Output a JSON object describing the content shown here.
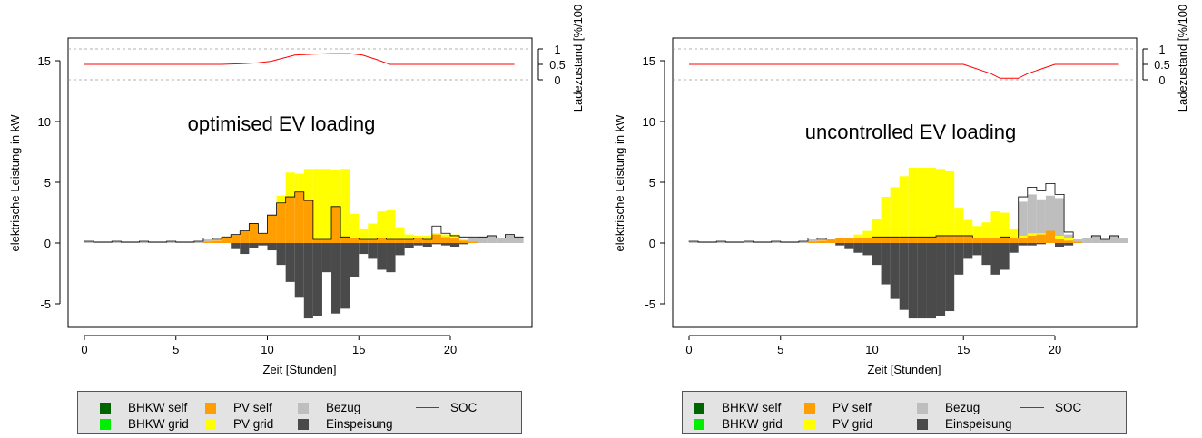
{
  "colors": {
    "bhkw_self": "#006400",
    "bhkw_grid": "#00ee00",
    "pv_self": "#ff9e00",
    "pv_grid": "#ffff00",
    "bezug": "#bebebe",
    "einspeisung": "#4a4a4a",
    "soc": "#ff0000",
    "load": "#000000",
    "legend_bg": "#e3e3e3"
  },
  "legend": {
    "bhkw_self": "BHKW self",
    "bhkw_grid": "BHKW grid",
    "pv_self": "PV self",
    "pv_grid": "PV grid",
    "bezug": "Bezug",
    "einspeisung": "Einspeisung",
    "soc": "SOC"
  },
  "chart_data": [
    {
      "type": "bar",
      "title": "",
      "annotation": "optimised EV loading",
      "xlabel": "Zeit [Stunden]",
      "ylabel": "elektrische Leistung in kW",
      "y2label": "Ladezustand [%/100",
      "xlim": [
        0,
        24
      ],
      "ylim": [
        -7,
        17
      ],
      "xticks": [
        "0",
        "5",
        "10",
        "15",
        "20"
      ],
      "yticks": [
        "-5",
        "0",
        "5",
        "10",
        "15"
      ],
      "y2ticks": [
        "0",
        "0.5",
        "1"
      ],
      "x": [
        6.5,
        7,
        7.5,
        8,
        8.5,
        9,
        9.5,
        10,
        10.5,
        11,
        11.5,
        12,
        12.5,
        13,
        13.5,
        14,
        14.5,
        15,
        15.5,
        16,
        16.5,
        17,
        17.5,
        18,
        18.5,
        19,
        19.5,
        20,
        20.5,
        21,
        21.5,
        22,
        22.5,
        23,
        23.5
      ],
      "series": [
        {
          "name": "PV self",
          "values": [
            0.1,
            0.2,
            0.4,
            0.7,
            1.0,
            1.6,
            0.8,
            2.3,
            3.3,
            3.8,
            4.2,
            3.5,
            0.3,
            0.3,
            3.0,
            0.5,
            0.4,
            0.3,
            0.3,
            0.4,
            0.3,
            0.3,
            0.3,
            0.4,
            0.3,
            0.7,
            0.5,
            0.4,
            0.2,
            0.1,
            0,
            0,
            0,
            0,
            0
          ]
        },
        {
          "name": "PV grid",
          "values": [
            0,
            0,
            0,
            0,
            0,
            0,
            0,
            0,
            0.6,
            2.0,
            1.5,
            2.6,
            5.8,
            5.8,
            3.0,
            5.6,
            2.0,
            0.9,
            1.3,
            2.2,
            2.4,
            1.0,
            0.4,
            0.2,
            0.3,
            0.1,
            0.2,
            0.3,
            0.1,
            0,
            0,
            0,
            0,
            0,
            0
          ]
        },
        {
          "name": "Einspeisung",
          "values": [
            0,
            0,
            0,
            -0.5,
            -0.9,
            -0.4,
            -0.2,
            -0.6,
            -1.8,
            -3.2,
            -4.5,
            -6.2,
            -6.0,
            -2.4,
            -5.8,
            -5.4,
            -2.8,
            -0.9,
            -1.3,
            -2.2,
            -2.4,
            -1.0,
            -0.4,
            -0.2,
            -0.3,
            -0.1,
            -0.2,
            -0.3,
            -0.1,
            0,
            0,
            0,
            0,
            0,
            0
          ]
        },
        {
          "name": "Bezug",
          "values": [
            0.3,
            0.1,
            0.1,
            0,
            0,
            0,
            0,
            0,
            0,
            0,
            0,
            0,
            0,
            0,
            0,
            0,
            0,
            0,
            0,
            0,
            0,
            0,
            0,
            0,
            0,
            0.7,
            0.3,
            0.2,
            0.3,
            0.4,
            0.5,
            0.6,
            0.4,
            0.7,
            0.5
          ]
        }
      ],
      "soc": {
        "name": "SOC",
        "x": [
          0,
          7.5,
          8.5,
          9.5,
          10.2,
          11.5,
          12.5,
          13.5,
          14.5,
          15.2,
          16.0,
          16.7,
          23.5
        ],
        "values": [
          0.5,
          0.5,
          0.52,
          0.55,
          0.6,
          0.8,
          0.83,
          0.85,
          0.85,
          0.8,
          0.65,
          0.5,
          0.5
        ]
      }
    },
    {
      "type": "bar",
      "title": "",
      "annotation": "uncontrolled EV loading",
      "xlabel": "Zeit [Stunden]",
      "ylabel": "elektrische Leistung in kW",
      "y2label": "Ladezustand [%/100",
      "xlim": [
        0,
        24
      ],
      "ylim": [
        -7,
        17
      ],
      "xticks": [
        "0",
        "5",
        "10",
        "15",
        "20"
      ],
      "yticks": [
        "-5",
        "0",
        "5",
        "10",
        "15"
      ],
      "y2ticks": [
        "0",
        "0.5",
        "1"
      ],
      "x": [
        6.5,
        7,
        7.5,
        8,
        8.5,
        9,
        9.5,
        10,
        10.5,
        11,
        11.5,
        12,
        12.5,
        13,
        13.5,
        14,
        14.5,
        15,
        15.5,
        16,
        16.5,
        17,
        17.5,
        18,
        18.5,
        19,
        19.5,
        20,
        20.5,
        21,
        21.5,
        22,
        22.5,
        23,
        23.5
      ],
      "series": [
        {
          "name": "PV self",
          "values": [
            0.1,
            0.2,
            0.3,
            0.4,
            0.4,
            0.4,
            0.4,
            0.5,
            0.5,
            0.5,
            0.5,
            0.5,
            0.5,
            0.5,
            0.6,
            0.6,
            0.6,
            0.6,
            0.4,
            0.4,
            0.4,
            0.5,
            0.4,
            0.4,
            0.6,
            0.7,
            1.0,
            0.3,
            0.2,
            0.1,
            0,
            0,
            0,
            0,
            0
          ]
        },
        {
          "name": "PV grid",
          "values": [
            0,
            0,
            0,
            0,
            0,
            0.3,
            0.6,
            1.5,
            3.3,
            4.1,
            5.0,
            5.7,
            5.7,
            5.7,
            5.5,
            5.3,
            2.3,
            1.3,
            1.0,
            1.3,
            2.2,
            2.0,
            0.8,
            0.2,
            0.2,
            0.1,
            0,
            0.3,
            0.2,
            0,
            0,
            0,
            0,
            0,
            0
          ]
        },
        {
          "name": "Einspeisung",
          "values": [
            0,
            0,
            0,
            -0.2,
            -0.5,
            -0.8,
            -1.0,
            -1.8,
            -3.4,
            -4.6,
            -5.5,
            -6.2,
            -6.2,
            -6.2,
            -6.0,
            -5.6,
            -2.6,
            -1.3,
            -1.0,
            -1.8,
            -2.6,
            -2.2,
            -0.8,
            -0.2,
            -0.2,
            -0.1,
            0,
            -0.3,
            -0.2,
            0,
            0,
            0,
            0,
            0,
            0
          ]
        },
        {
          "name": "Bezug",
          "values": [
            0.3,
            0.1,
            0.1,
            0,
            0,
            0,
            0,
            0,
            0,
            0,
            0,
            0,
            0,
            0,
            0,
            0,
            0,
            0,
            0,
            0,
            0,
            0,
            0,
            3.4,
            4.0,
            3.6,
            3.9,
            3.7,
            0.7,
            0.3,
            0.4,
            0.6,
            0.3,
            0.6,
            0.4
          ]
        }
      ],
      "soc": {
        "name": "SOC",
        "x": [
          0,
          15.0,
          15.5,
          16.0,
          16.5,
          17.0,
          17.5,
          18.0,
          18.5,
          19.0,
          19.5,
          20.0,
          23.5
        ],
        "values": [
          0.5,
          0.5,
          0.4,
          0.3,
          0.2,
          0.05,
          0.05,
          0.05,
          0.2,
          0.3,
          0.4,
          0.5,
          0.5
        ]
      }
    }
  ]
}
